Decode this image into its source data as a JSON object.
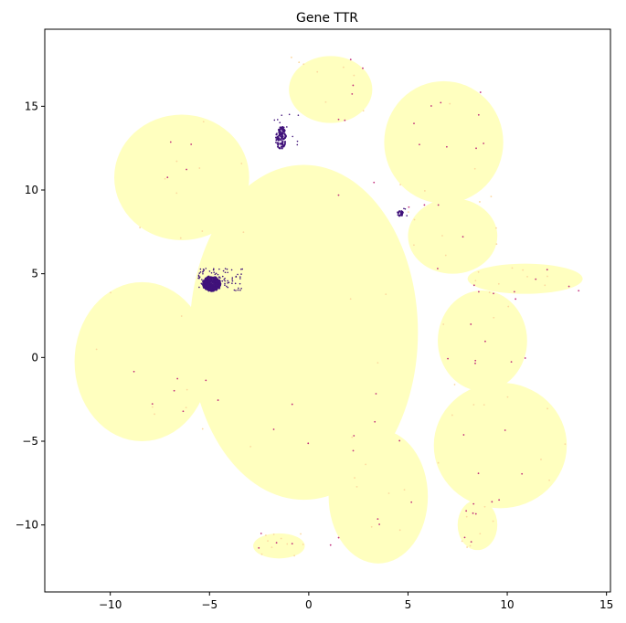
{
  "chart_data": {
    "type": "scatter",
    "title": "Gene TTR",
    "xlabel": "",
    "ylabel": "",
    "xlim": [
      -13.3,
      15.2
    ],
    "ylim": [
      -14.0,
      19.6
    ],
    "x_ticks": [
      -10,
      -5,
      0,
      5,
      10,
      15
    ],
    "y_ticks": [
      -10,
      -5,
      0,
      5,
      10,
      15
    ],
    "grid": false,
    "legend": "none",
    "colors": {
      "background_expression": "#ffffbf",
      "low_expression": "#fcd89f",
      "mid_expression": "#c2307c",
      "high_expression": "#40127a"
    },
    "clusters": [
      {
        "name": "top",
        "x": [
          -1.0,
          3.2
        ],
        "y": [
          14.0,
          18.0
        ]
      },
      {
        "name": "upper-left",
        "x": [
          -9.8,
          -3.0
        ],
        "y": [
          7.0,
          14.5
        ]
      },
      {
        "name": "upper-right",
        "x": [
          3.8,
          9.8
        ],
        "y": [
          9.2,
          16.5
        ]
      },
      {
        "name": "center",
        "x": [
          -6.0,
          5.5
        ],
        "y": [
          -8.5,
          11.5
        ]
      },
      {
        "name": "left",
        "x": [
          -11.8,
          -5.0
        ],
        "y": [
          -5.0,
          4.5
        ]
      },
      {
        "name": "right-upper",
        "x": [
          5.0,
          9.5
        ],
        "y": [
          5.0,
          9.5
        ]
      },
      {
        "name": "arm-right",
        "x": [
          8.0,
          13.8
        ],
        "y": [
          3.8,
          5.6
        ]
      },
      {
        "name": "right-middle",
        "x": [
          6.5,
          11.0
        ],
        "y": [
          -2.0,
          4.0
        ]
      },
      {
        "name": "bottom-center",
        "x": [
          1.0,
          6.0
        ],
        "y": [
          -12.3,
          -4.3
        ]
      },
      {
        "name": "bottom-right",
        "x": [
          6.3,
          13.0
        ],
        "y": [
          -9.0,
          -1.5
        ]
      },
      {
        "name": "bottom-right-tail",
        "x": [
          7.5,
          9.5
        ],
        "y": [
          -11.5,
          -8.5
        ]
      },
      {
        "name": "bottom-left-tail",
        "x": [
          -2.8,
          -0.2
        ],
        "y": [
          -12.0,
          -10.5
        ]
      }
    ],
    "high_expression_clusters": [
      {
        "x": -4.9,
        "y": 4.4,
        "count": 320
      },
      {
        "x": -1.4,
        "y": 13.1,
        "count": 80
      },
      {
        "x": 4.6,
        "y": 8.6,
        "count": 18
      }
    ]
  }
}
